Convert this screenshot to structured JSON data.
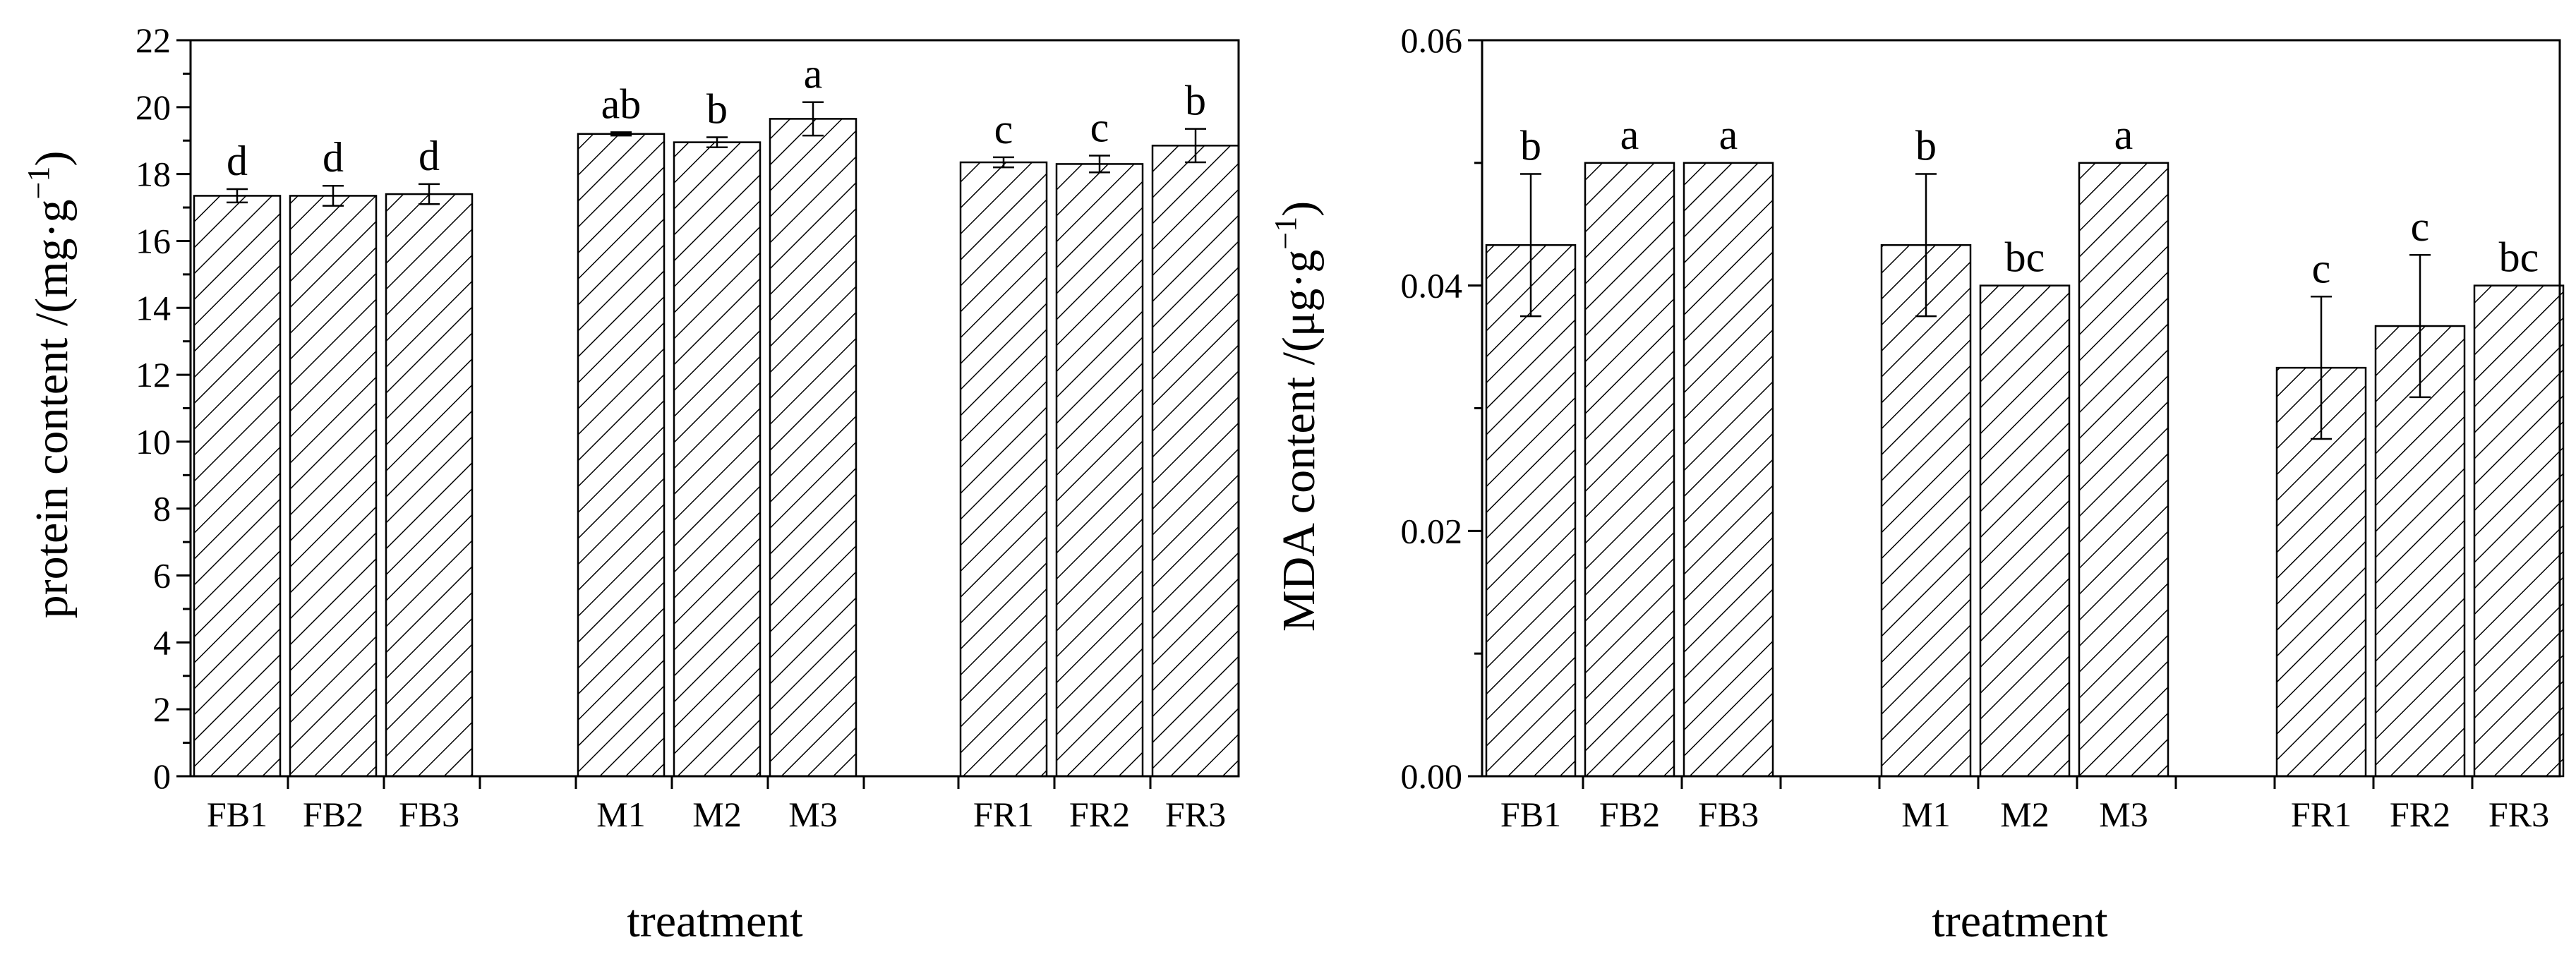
{
  "chart_data": [
    {
      "type": "bar",
      "ylabel": "protein content /(mg·g",
      "ylabel_sup": "−1",
      "ylabel_end": ")",
      "xlabel": "treatment",
      "ylim": [
        0,
        22
      ],
      "yticks": [
        0,
        2,
        4,
        6,
        8,
        10,
        12,
        14,
        16,
        18,
        20,
        22
      ],
      "ytick_labels": [
        "0",
        "2",
        "4",
        "6",
        "8",
        "10",
        "12",
        "14",
        "16",
        "18",
        "20",
        "22"
      ],
      "categories": [
        "FB1",
        "FB2",
        "FB3",
        "M1",
        "M2",
        "M3",
        "FR1",
        "FR2",
        "FR3"
      ],
      "values": [
        17.35,
        17.35,
        17.4,
        19.2,
        18.95,
        19.65,
        18.35,
        18.3,
        18.85
      ],
      "errors": [
        0.2,
        0.3,
        0.3,
        0.05,
        0.15,
        0.5,
        0.15,
        0.25,
        0.5
      ],
      "significance": [
        "d",
        "d",
        "d",
        "ab",
        "b",
        "a",
        "c",
        "c",
        "b"
      ]
    },
    {
      "type": "bar",
      "ylabel": "MDA content /(μg·g",
      "ylabel_sup": "−1",
      "ylabel_end": ")",
      "xlabel": "treatment",
      "ylim": [
        0,
        0.06
      ],
      "yticks": [
        0,
        0.02,
        0.04,
        0.06
      ],
      "ytick_labels": [
        "0.00",
        "0.02",
        "0.04",
        "0.06"
      ],
      "categories": [
        "FB1",
        "FB2",
        "FB3",
        "M1",
        "M2",
        "M3",
        "FR1",
        "FR2",
        "FR3"
      ],
      "values": [
        0.0433,
        0.05,
        0.05,
        0.0433,
        0.04,
        0.05,
        0.0333,
        0.0367,
        0.04
      ],
      "errors": [
        0.0058,
        0,
        0,
        0.0058,
        0,
        0,
        0.0058,
        0.0058,
        0
      ],
      "significance": [
        "b",
        "a",
        "a",
        "b",
        "bc",
        "a",
        "c",
        "c",
        "bc"
      ]
    }
  ]
}
